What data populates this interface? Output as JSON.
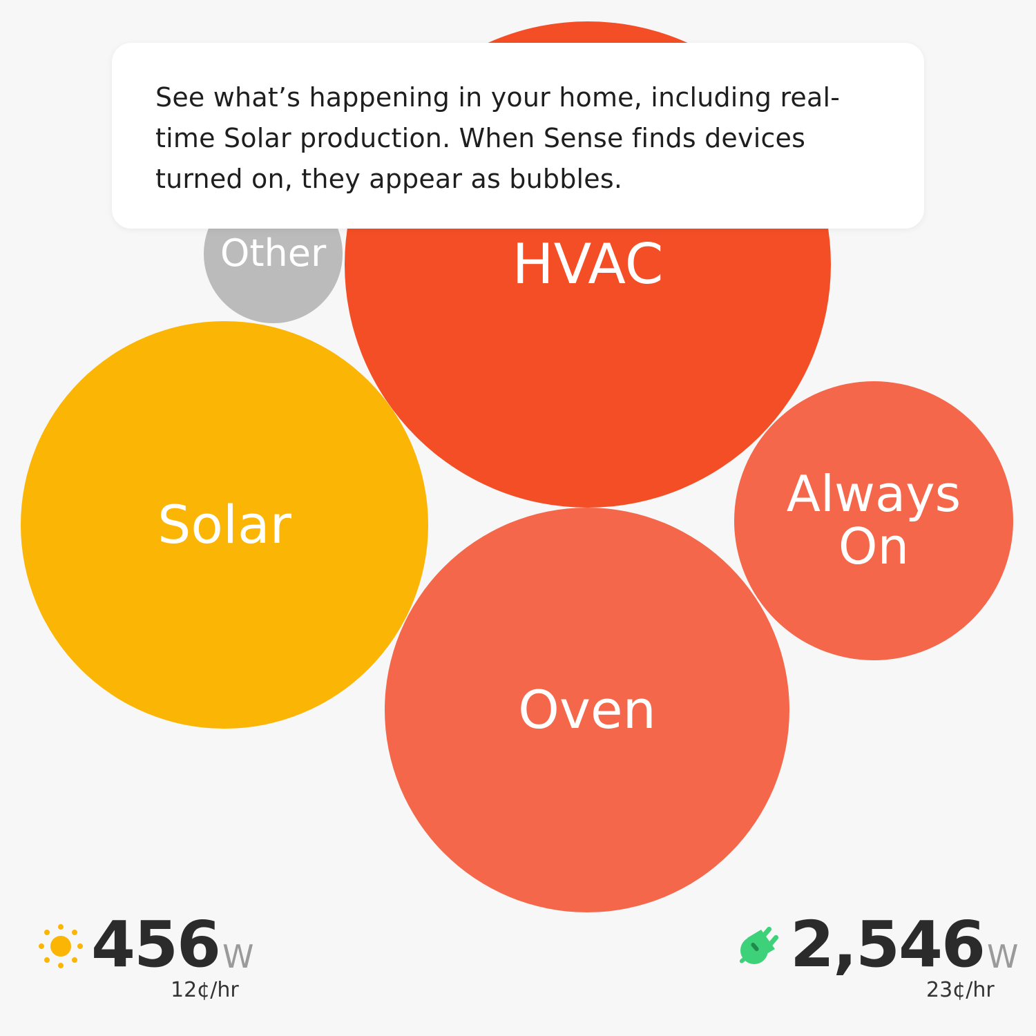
{
  "tooltip": {
    "text": "See what’s happening in your home, including real-time Solar production. When Sense finds devices turned on, they appear as bubbles."
  },
  "bubbles": [
    {
      "label": "HVAC",
      "color": "#F44E26"
    },
    {
      "label": "Other",
      "color": "#BBBBBB"
    },
    {
      "label": "Solar",
      "color": "#FBB505"
    },
    {
      "label": "Oven",
      "color": "#F4674A"
    },
    {
      "label": "Always On",
      "color": "#F4674A"
    }
  ],
  "solar": {
    "icon": "sun-icon",
    "value": "456",
    "unit": "W",
    "rate": "12¢/hr",
    "color": "#FBB505"
  },
  "usage": {
    "icon": "plug-icon",
    "value": "2,546",
    "unit": "W",
    "rate": "23¢/hr",
    "color": "#3DD17A"
  }
}
